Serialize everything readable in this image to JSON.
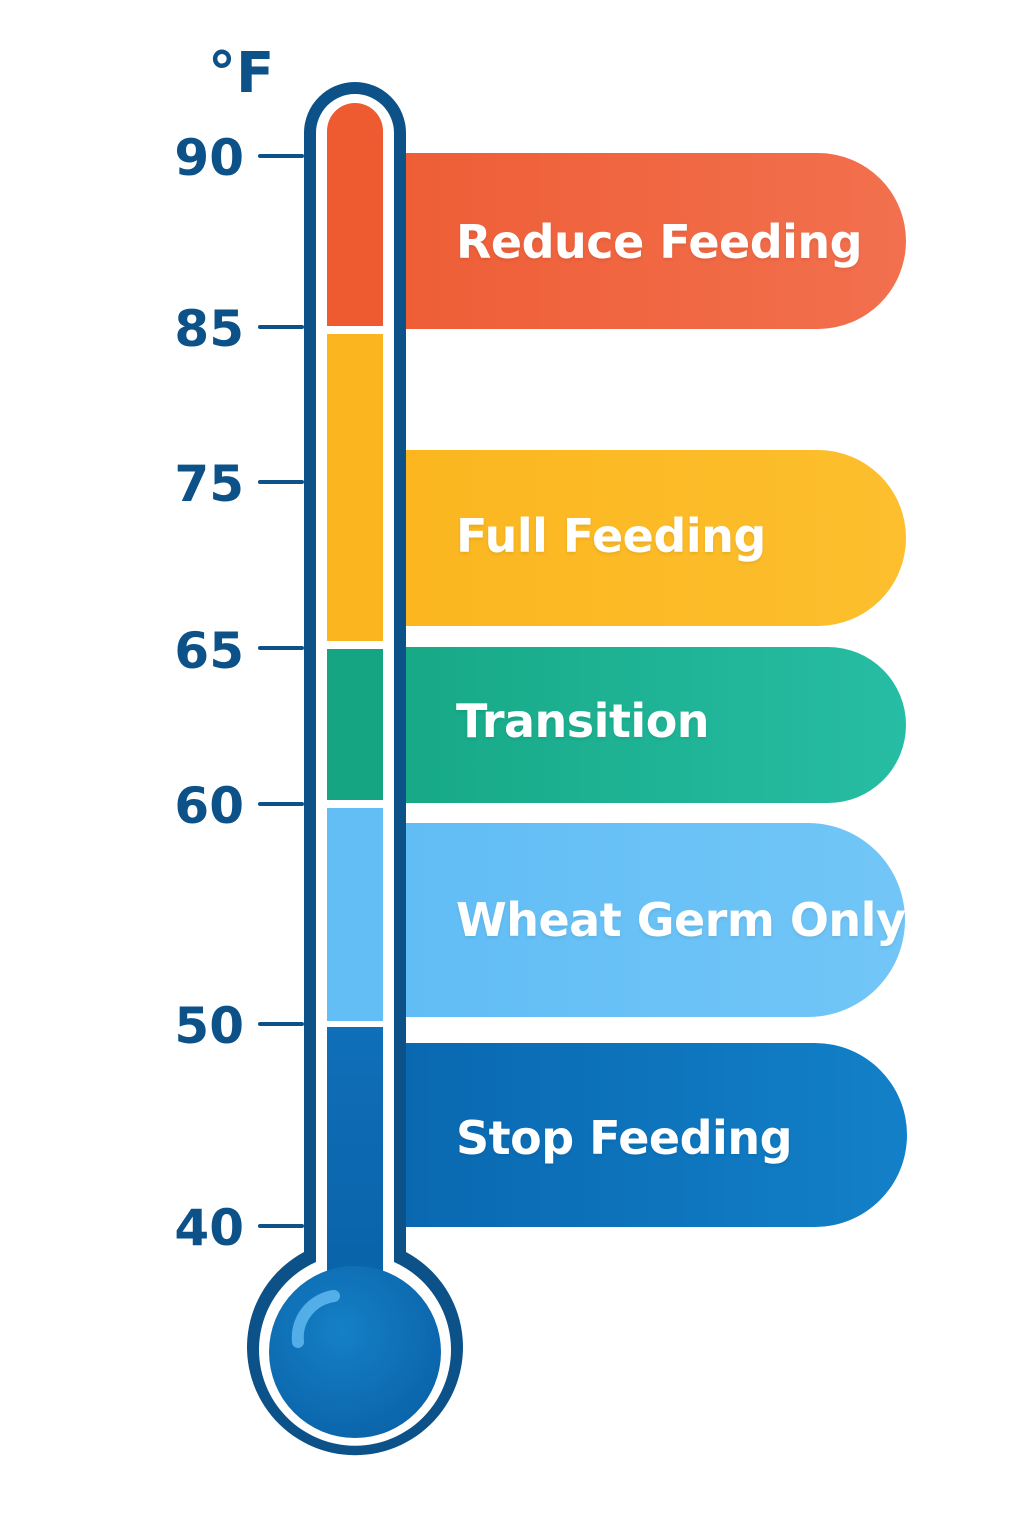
{
  "scale": {
    "unit": "°F",
    "ticks": [
      {
        "label": "90"
      },
      {
        "label": "85"
      },
      {
        "label": "75"
      },
      {
        "label": "65"
      },
      {
        "label": "60"
      },
      {
        "label": "50"
      },
      {
        "label": "40"
      }
    ]
  },
  "bands": [
    {
      "label": "Reduce Feeding",
      "color": "#ef6540"
    },
    {
      "label": "Full Feeding",
      "color": "#fbb824"
    },
    {
      "label": "Transition",
      "color": "#21b79a"
    },
    {
      "label": "Wheat Germ Only",
      "color": "#66bff5"
    },
    {
      "label": "Stop Feeding",
      "color": "#0b72bc"
    }
  ],
  "colors": {
    "outline": "#0d5189",
    "bulb": "#0c6fb5"
  }
}
